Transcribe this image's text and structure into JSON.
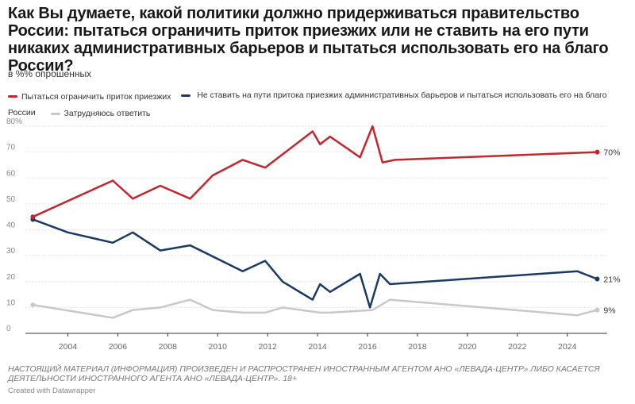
{
  "title": "Как Вы думаете, какой политики должно придерживаться правительство России: пытаться ограничить приток приезжих или не ставить на его пути никаких административных барьеров и пытаться использовать его на благо России?",
  "subtitle": "в %% опрошенных",
  "footnote": "НАСТОЯЩИЙ МАТЕРИАЛ (ИНФОРМАЦИЯ) ПРОИЗВЕДЕН И РАСПРОСТРАНЕН ИНОСТРАННЫМ АГЕНТОМ АНО «ЛЕВАДА-ЦЕНТР» ЛИБО КАСАЕТСЯ ДЕЯТЕЛЬНОСТИ ИНОСТРАННОГО АГЕНТА АНО «ЛЕВАДА-ЦЕНТР». 18+",
  "credit": "Created with Datawrapper",
  "chart_data": {
    "type": "line",
    "title": "Как Вы думаете, какой политики должно придерживаться правительство России: пытаться ограничить приток приезжих или не ставить на его пути никаких административных барьеров и пытаться использовать его на благо России?",
    "ylabel": "в %% опрошенных",
    "xlim": [
      2002.3,
      2025.6
    ],
    "ylim": [
      0,
      80
    ],
    "x_ticks": [
      2004,
      2006,
      2008,
      2010,
      2012,
      2014,
      2016,
      2018,
      2020,
      2022,
      2024
    ],
    "y_ticks": [
      0,
      10,
      20,
      30,
      40,
      50,
      60,
      70,
      80
    ],
    "y_tick_labels": [
      "0",
      "10",
      "20",
      "30",
      "40",
      "50",
      "60",
      "70",
      "80%"
    ],
    "grid": true,
    "legend_position": "top",
    "series": [
      {
        "name": "Пытаться ограничить приток приезжих",
        "color": "#c4262e",
        "end_label": "70%",
        "points": [
          [
            2002.6,
            45
          ],
          [
            2005.8,
            59
          ],
          [
            2006.6,
            52
          ],
          [
            2007.7,
            57
          ],
          [
            2008.9,
            52
          ],
          [
            2009.8,
            61
          ],
          [
            2011.0,
            67
          ],
          [
            2011.9,
            64
          ],
          [
            2013.8,
            78
          ],
          [
            2014.1,
            73
          ],
          [
            2014.5,
            76
          ],
          [
            2015.7,
            68
          ],
          [
            2016.2,
            80
          ],
          [
            2016.6,
            66
          ],
          [
            2017.1,
            67
          ],
          [
            2025.2,
            70
          ]
        ]
      },
      {
        "name": "Не ставить на пути притока приезжих административных барьеров и пытаться использовать его на благо России",
        "color": "#1a3a66",
        "end_label": "21%",
        "points": [
          [
            2002.6,
            44
          ],
          [
            2004.0,
            39
          ],
          [
            2005.8,
            35
          ],
          [
            2006.6,
            39
          ],
          [
            2007.7,
            32
          ],
          [
            2008.9,
            34
          ],
          [
            2011.0,
            24
          ],
          [
            2011.9,
            28
          ],
          [
            2012.6,
            20
          ],
          [
            2013.8,
            13
          ],
          [
            2014.1,
            19
          ],
          [
            2014.5,
            16
          ],
          [
            2015.7,
            23
          ],
          [
            2016.1,
            10
          ],
          [
            2016.5,
            23
          ],
          [
            2016.9,
            19
          ],
          [
            2024.4,
            24
          ],
          [
            2025.2,
            21
          ]
        ]
      },
      {
        "name": "Затрудняюсь ответить",
        "color": "#c8c8c8",
        "end_label": "9%",
        "points": [
          [
            2002.6,
            11
          ],
          [
            2005.8,
            6
          ],
          [
            2006.6,
            9
          ],
          [
            2007.7,
            10
          ],
          [
            2008.9,
            13
          ],
          [
            2009.8,
            9
          ],
          [
            2011.0,
            8
          ],
          [
            2011.9,
            8
          ],
          [
            2012.6,
            10
          ],
          [
            2014.1,
            8
          ],
          [
            2014.5,
            8
          ],
          [
            2016.2,
            9
          ],
          [
            2016.9,
            13
          ],
          [
            2024.4,
            7
          ],
          [
            2025.2,
            9
          ]
        ]
      }
    ]
  }
}
